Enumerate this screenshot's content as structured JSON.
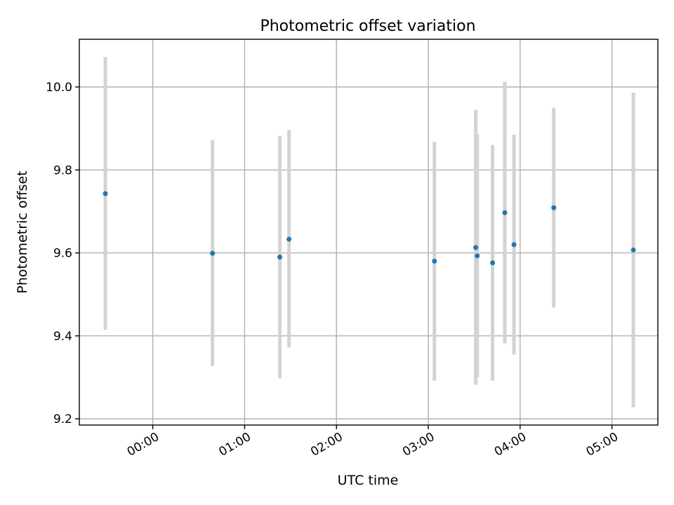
{
  "chart_data": {
    "type": "scatter",
    "title": "Photometric offset variation",
    "xlabel": "UTC time",
    "ylabel": "Photometric offset",
    "xlim": [
      "-00:48",
      "05:30"
    ],
    "ylim": [
      9.185,
      10.115
    ],
    "x_ticks": [
      "00:00",
      "01:00",
      "02:00",
      "03:00",
      "04:00",
      "05:00"
    ],
    "y_ticks": [
      "9.2",
      "9.4",
      "9.6",
      "9.8",
      "10.0"
    ],
    "grid": true,
    "legend": "none",
    "marker_color": "#1f77b4",
    "errorbar_color": "#d3d3d3",
    "points": [
      {
        "time": "-00:31",
        "y": 9.743,
        "ylow": 9.415,
        "yhigh": 10.072
      },
      {
        "time": "00:39",
        "y": 9.599,
        "ylow": 9.327,
        "yhigh": 9.872
      },
      {
        "time": "01:23",
        "y": 9.59,
        "ylow": 9.298,
        "yhigh": 9.882
      },
      {
        "time": "01:29",
        "y": 9.633,
        "ylow": 9.372,
        "yhigh": 9.896
      },
      {
        "time": "03:04",
        "y": 9.58,
        "ylow": 9.292,
        "yhigh": 9.868
      },
      {
        "time": "03:31",
        "y": 9.613,
        "ylow": 9.282,
        "yhigh": 9.945
      },
      {
        "time": "03:32",
        "y": 9.593,
        "ylow": 9.3,
        "yhigh": 9.886
      },
      {
        "time": "03:42",
        "y": 9.576,
        "ylow": 9.292,
        "yhigh": 9.86
      },
      {
        "time": "03:50",
        "y": 9.697,
        "ylow": 9.382,
        "yhigh": 10.013
      },
      {
        "time": "03:56",
        "y": 9.62,
        "ylow": 9.355,
        "yhigh": 9.885
      },
      {
        "time": "04:22",
        "y": 9.709,
        "ylow": 9.468,
        "yhigh": 9.95
      },
      {
        "time": "05:14",
        "y": 9.607,
        "ylow": 9.228,
        "yhigh": 9.986
      }
    ]
  }
}
